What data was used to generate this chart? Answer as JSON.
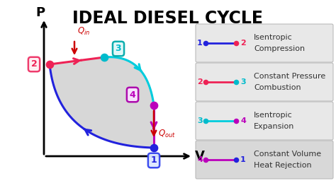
{
  "title": "IDEAL DIESEL CYCLE",
  "title_fontsize": 17,
  "bg_color": "#ffffff",
  "point_colors": {
    "1": "#2222dd",
    "2": "#ee2255",
    "3": "#00bbcc",
    "4": "#bb00bb"
  },
  "process_colors": {
    "1to2": "#2222dd",
    "2to3": "#ee2255",
    "3to4": "#00ccdd",
    "4to1": "#bb00bb"
  },
  "legend_items": [
    {
      "label1": "1",
      "label2": "2",
      "color1": "#2222dd",
      "color2": "#ee2255",
      "line_color": "#2222dd",
      "text": [
        "Isentropic",
        "Compression"
      ]
    },
    {
      "label1": "2",
      "label2": "3",
      "color1": "#ee2255",
      "color2": "#00bbcc",
      "line_color": "#ee2255",
      "text": [
        "Constant Pressure",
        "Combustion"
      ]
    },
    {
      "label1": "3",
      "label2": "4",
      "color1": "#00bbcc",
      "color2": "#bb00bb",
      "line_color": "#00ccdd",
      "text": [
        "Isentropic",
        "Expansion"
      ]
    },
    {
      "label1": "4",
      "label2": "1",
      "color1": "#bb00bb",
      "color2": "#2222dd",
      "line_color": "#bb00bb",
      "text": [
        "Constant Volume",
        "Heat Rejection"
      ]
    }
  ],
  "xlabel": "V",
  "ylabel": "P"
}
